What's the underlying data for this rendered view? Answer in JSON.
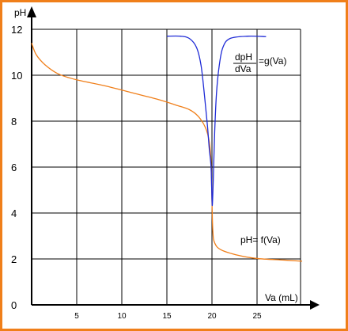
{
  "chart_data": {
    "type": "line",
    "xlabel": "Va (mL)",
    "ylabel": "pH",
    "xlim": [
      0,
      30
    ],
    "ylim": [
      0,
      12
    ],
    "grid": true,
    "x_ticks": [
      5,
      10,
      15,
      20,
      25
    ],
    "y_ticks": [
      0,
      2,
      4,
      6,
      8,
      10,
      12
    ],
    "series": [
      {
        "name": "pH= f(Va)",
        "color": "#f07f1a",
        "points": [
          [
            0,
            11.4
          ],
          [
            0.5,
            10.9
          ],
          [
            1.5,
            10.45
          ],
          [
            3,
            10.05
          ],
          [
            5,
            9.8
          ],
          [
            8,
            9.55
          ],
          [
            11,
            9.25
          ],
          [
            14,
            8.95
          ],
          [
            16,
            8.7
          ],
          [
            17.5,
            8.5
          ],
          [
            18.5,
            8.2
          ],
          [
            19.3,
            7.7
          ],
          [
            19.7,
            7.1
          ],
          [
            19.9,
            6.2
          ],
          [
            20.0,
            4.5
          ],
          [
            20.1,
            3.2
          ],
          [
            20.3,
            2.7
          ],
          [
            21,
            2.4
          ],
          [
            23,
            2.15
          ],
          [
            25,
            2.02
          ],
          [
            28,
            1.95
          ],
          [
            30,
            1.9
          ]
        ]
      },
      {
        "name": "g(Va)",
        "color": "#1f2bd6",
        "points": [
          [
            15,
            11.7
          ],
          [
            16.5,
            11.7
          ],
          [
            17.5,
            11.6
          ],
          [
            18.3,
            11.2
          ],
          [
            18.8,
            10.4
          ],
          [
            19.2,
            9.0
          ],
          [
            19.5,
            7.8
          ],
          [
            19.7,
            6.8
          ],
          [
            19.9,
            6.0
          ],
          [
            20.0,
            4.6
          ],
          [
            20.05,
            4.4
          ],
          [
            20.15,
            5.5
          ],
          [
            20.3,
            7.5
          ],
          [
            20.5,
            9.2
          ],
          [
            20.8,
            10.4
          ],
          [
            21.2,
            11.2
          ],
          [
            22,
            11.6
          ],
          [
            24,
            11.7
          ],
          [
            26,
            11.68
          ]
        ]
      }
    ],
    "annotations": {
      "deriv_num": "dpH",
      "deriv_den": "dVa",
      "deriv_rhs": "=g(Va)",
      "f_label": "pH= f(Va)"
    }
  }
}
